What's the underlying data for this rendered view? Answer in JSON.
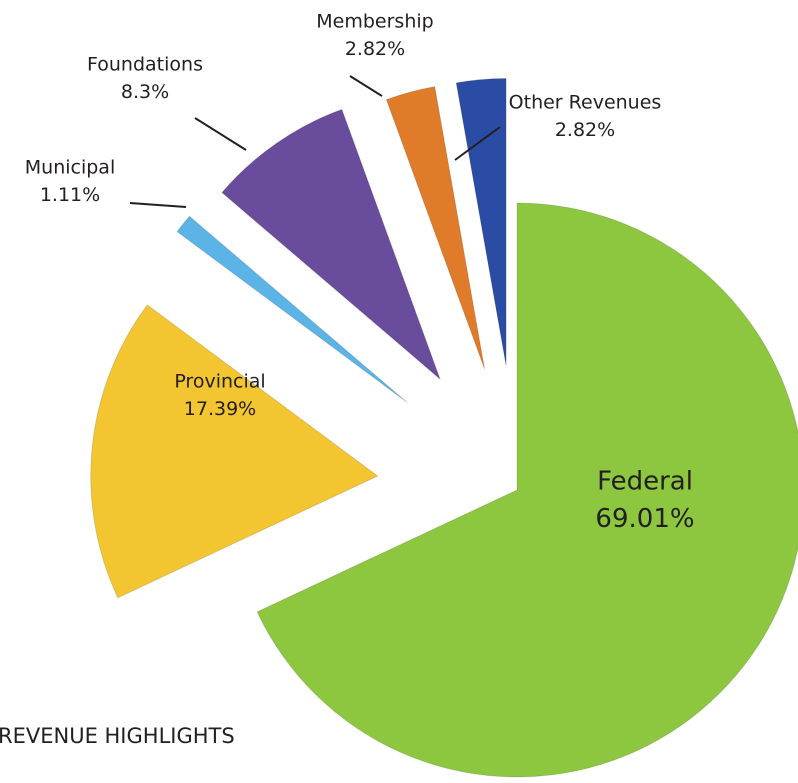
{
  "chart_data": {
    "type": "pie",
    "title": "REVENUE HIGHLIGHTS",
    "categories": [
      "Federal",
      "Provincial",
      "Municipal",
      "Foundations",
      "Membership",
      "Other Revenues"
    ],
    "values": [
      69.01,
      17.39,
      1.11,
      8.3,
      2.82,
      2.82
    ],
    "value_labels": [
      "69.01%",
      "17.39%",
      "1.11%",
      "8.3%",
      "2.82%",
      "2.82%"
    ],
    "colors": [
      "#8dc63f",
      "#f2c531",
      "#5bb4e5",
      "#6a4c9c",
      "#e07b2a",
      "#2b4ca5"
    ]
  }
}
